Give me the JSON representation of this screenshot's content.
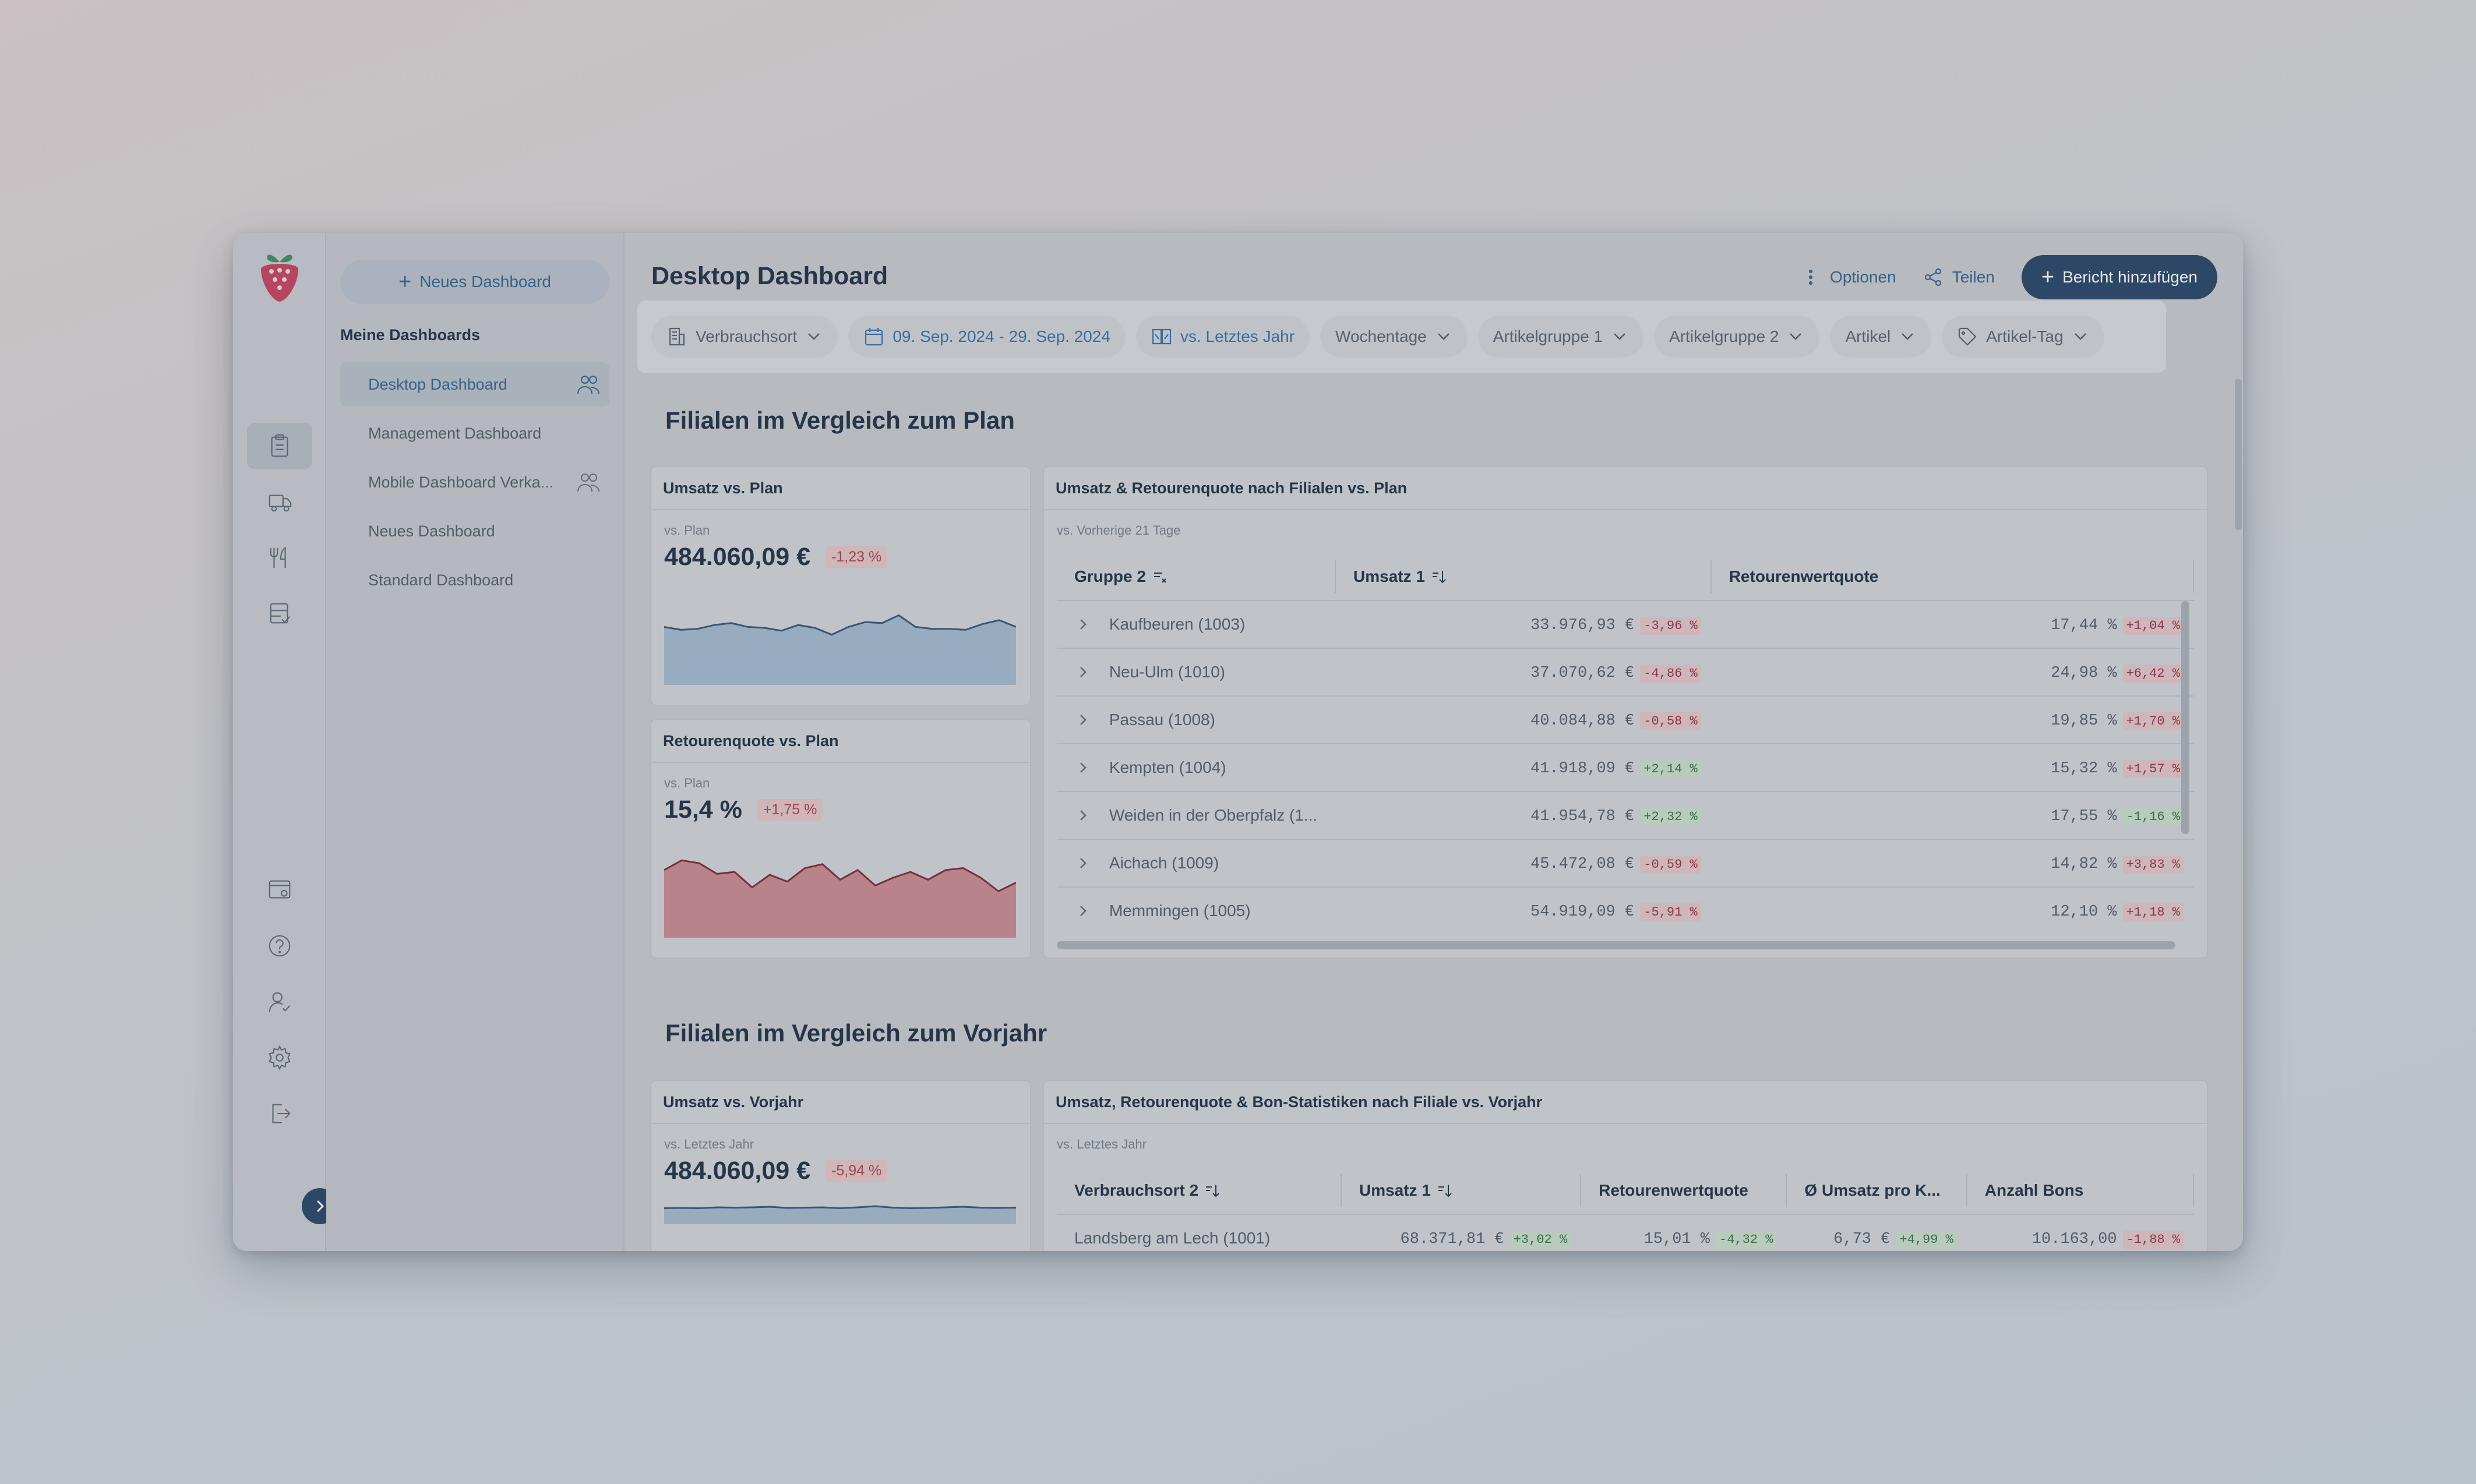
{
  "colors": {
    "primary": "#1d3b5e",
    "accent_blue": "#2a6aa5",
    "negative": "#a23a44",
    "positive": "#2d6a3a"
  },
  "rail": {
    "logo_icon": "strawberry-logo",
    "top_icons": [
      "clipboard-icon",
      "truck-icon",
      "fork-knife-icon",
      "database-check-icon"
    ],
    "bottom_icons": [
      "browser-settings-icon",
      "help-icon",
      "user-check-icon",
      "gear-icon",
      "logout-icon"
    ],
    "collapse_icon": "chevron-right-icon"
  },
  "sidebar": {
    "new_button": "Neues Dashboard",
    "heading": "Meine Dashboards",
    "items": [
      {
        "label": "Desktop Dashboard",
        "shared": true
      },
      {
        "label": "Management Dashboard",
        "shared": false
      },
      {
        "label": "Mobile Dashboard Verka...",
        "shared": true
      },
      {
        "label": "Neues Dashboard",
        "shared": false
      },
      {
        "label": "Standard Dashboard",
        "shared": false
      }
    ]
  },
  "header": {
    "title": "Desktop Dashboard",
    "options": "Optionen",
    "share": "Teilen",
    "add_report": "Bericht hinzufügen"
  },
  "filters": {
    "location": "Verbrauchsort",
    "date_range": "09. Sep. 2024 - 29. Sep. 2024",
    "comparison": "vs. Letztes Jahr",
    "weekdays": "Wochentage",
    "group1": "Artikelgruppe 1",
    "group2": "Artikelgruppe 2",
    "article": "Artikel",
    "tag": "Artikel-Tag"
  },
  "section1": {
    "title": "Filialen im Vergleich zum Plan",
    "revenue_card": {
      "title": "Umsatz vs. Plan",
      "sub": "vs. Plan",
      "value": "484.060,09 €",
      "delta": "-1,23 %"
    },
    "return_card": {
      "title": "Retourenquote vs. Plan",
      "sub": "vs. Plan",
      "value": "15,4 %",
      "delta": "+1,75 %"
    },
    "table_card": {
      "title": "Umsatz & Retourenquote nach Filialen vs. Plan",
      "sub": "vs. Vorherige 21 Tage",
      "headers": {
        "group": "Gruppe 2",
        "revenue": "Umsatz 1",
        "return_rate": "Retourenwertquote"
      },
      "rows": [
        {
          "name": "Kaufbeuren (1003)",
          "revenue": "33.976,93 €",
          "rev_delta": "-3,96 %",
          "rev_pos": false,
          "rate": "17,44 %",
          "rate_delta": "+1,04 %",
          "rate_pos": false
        },
        {
          "name": "Neu-Ulm (1010)",
          "revenue": "37.070,62 €",
          "rev_delta": "-4,86 %",
          "rev_pos": false,
          "rate": "24,98 %",
          "rate_delta": "+6,42 %",
          "rate_pos": false
        },
        {
          "name": "Passau (1008)",
          "revenue": "40.084,88 €",
          "rev_delta": "-0,58 %",
          "rev_pos": false,
          "rate": "19,85 %",
          "rate_delta": "+1,70 %",
          "rate_pos": false
        },
        {
          "name": "Kempten (1004)",
          "revenue": "41.918,09 €",
          "rev_delta": "+2,14 %",
          "rev_pos": true,
          "rate": "15,32 %",
          "rate_delta": "+1,57 %",
          "rate_pos": false
        },
        {
          "name": "Weiden in der Oberpfalz (1...",
          "revenue": "41.954,78 €",
          "rev_delta": "+2,32 %",
          "rev_pos": true,
          "rate": "17,55 %",
          "rate_delta": "-1,16 %",
          "rate_pos": true
        },
        {
          "name": "Aichach (1009)",
          "revenue": "45.472,08 €",
          "rev_delta": "-0,59 %",
          "rev_pos": false,
          "rate": "14,82 %",
          "rate_delta": "+3,83 %",
          "rate_pos": false
        },
        {
          "name": "Memmingen (1005)",
          "revenue": "54.919,09 €",
          "rev_delta": "-5,91 %",
          "rev_pos": false,
          "rate": "12,10 %",
          "rate_delta": "+1,18 %",
          "rate_pos": false
        }
      ]
    }
  },
  "section2": {
    "title": "Filialen im Vergleich zum Vorjahr",
    "revenue_card": {
      "title": "Umsatz vs. Vorjahr",
      "sub": "vs. Letztes Jahr",
      "value": "484.060,09 €",
      "delta": "-5,94 %"
    },
    "table_card": {
      "title": "Umsatz, Retourenquote & Bon-Statistiken nach Filiale vs. Vorjahr",
      "sub": "vs. Letztes Jahr",
      "headers": {
        "location": "Verbrauchsort 2",
        "revenue": "Umsatz 1",
        "return_rate": "Retourenwertquote",
        "avg": "Ø Umsatz pro K...",
        "bons": "Anzahl Bons"
      },
      "rows": [
        {
          "name": "Landsberg am Lech (1001)",
          "revenue": "68.371,81 €",
          "rev_delta": "+3,02 %",
          "rate": "15,01 %",
          "rate_delta": "-4,32 %",
          "avg": "6,73 €",
          "avg_delta": "+4,99 %",
          "bons": "10.163,00",
          "bons_delta": "-1,88 %"
        }
      ]
    }
  },
  "chart_data": [
    {
      "type": "area",
      "title": "Umsatz vs. Plan",
      "values": [
        60,
        57,
        58,
        62,
        64,
        60,
        59,
        56,
        62,
        59,
        52,
        60,
        65,
        64,
        72,
        60,
        58,
        58,
        57,
        63,
        67,
        60
      ]
    },
    {
      "type": "area",
      "title": "Retourenquote vs. Plan",
      "values": [
        70,
        80,
        77,
        66,
        68,
        52,
        65,
        58,
        72,
        76,
        60,
        70,
        54,
        62,
        68,
        60,
        70,
        72,
        62,
        48,
        57
      ]
    },
    {
      "type": "area",
      "title": "Umsatz vs. Vorjahr",
      "values": [
        55,
        56,
        55,
        58,
        57,
        58,
        60,
        56,
        57,
        58,
        55,
        58,
        62,
        57,
        55,
        56,
        58,
        60,
        57,
        56,
        57
      ]
    }
  ]
}
